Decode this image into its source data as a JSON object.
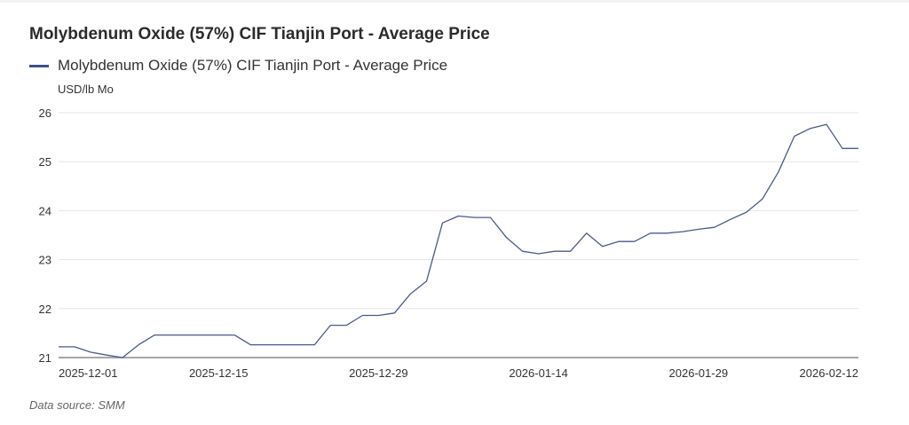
{
  "chart_data": {
    "type": "line",
    "title": "Molybdenum Oxide (57%) CIF Tianjin Port - Average Price",
    "ylabel": "USD/lb Mo",
    "xlabel": "",
    "ylim": [
      21,
      26
    ],
    "yticks": [
      "21",
      "22",
      "23",
      "24",
      "25",
      "26"
    ],
    "grid": true,
    "legend_position": "top-left",
    "xticks": [
      {
        "index": 0,
        "label": "2025-12-01"
      },
      {
        "index": 10,
        "label": "2025-12-15"
      },
      {
        "index": 20,
        "label": "2025-12-29"
      },
      {
        "index": 30,
        "label": "2026-01-14"
      },
      {
        "index": 40,
        "label": "2026-01-29"
      },
      {
        "index": 48,
        "label": "2026-02-12"
      }
    ],
    "series": [
      {
        "name": "Molybdenum Oxide (57%) CIF Tianjin Port - Average Price",
        "color": "#4a5a8c",
        "values": [
          21.22,
          21.22,
          21.11,
          21.05,
          21.0,
          21.26,
          21.46,
          21.46,
          21.46,
          21.46,
          21.46,
          21.46,
          21.26,
          21.26,
          21.26,
          21.26,
          21.26,
          21.66,
          21.66,
          21.86,
          21.86,
          21.91,
          22.3,
          22.56,
          23.75,
          23.89,
          23.86,
          23.86,
          23.45,
          23.17,
          23.12,
          23.17,
          23.17,
          23.54,
          23.27,
          23.37,
          23.37,
          23.54,
          23.54,
          23.57,
          23.62,
          23.66,
          23.82,
          23.97,
          24.24,
          24.79,
          25.52,
          25.68,
          25.76,
          25.27,
          25.27
        ]
      }
    ]
  },
  "source": "Data source:  SMM"
}
